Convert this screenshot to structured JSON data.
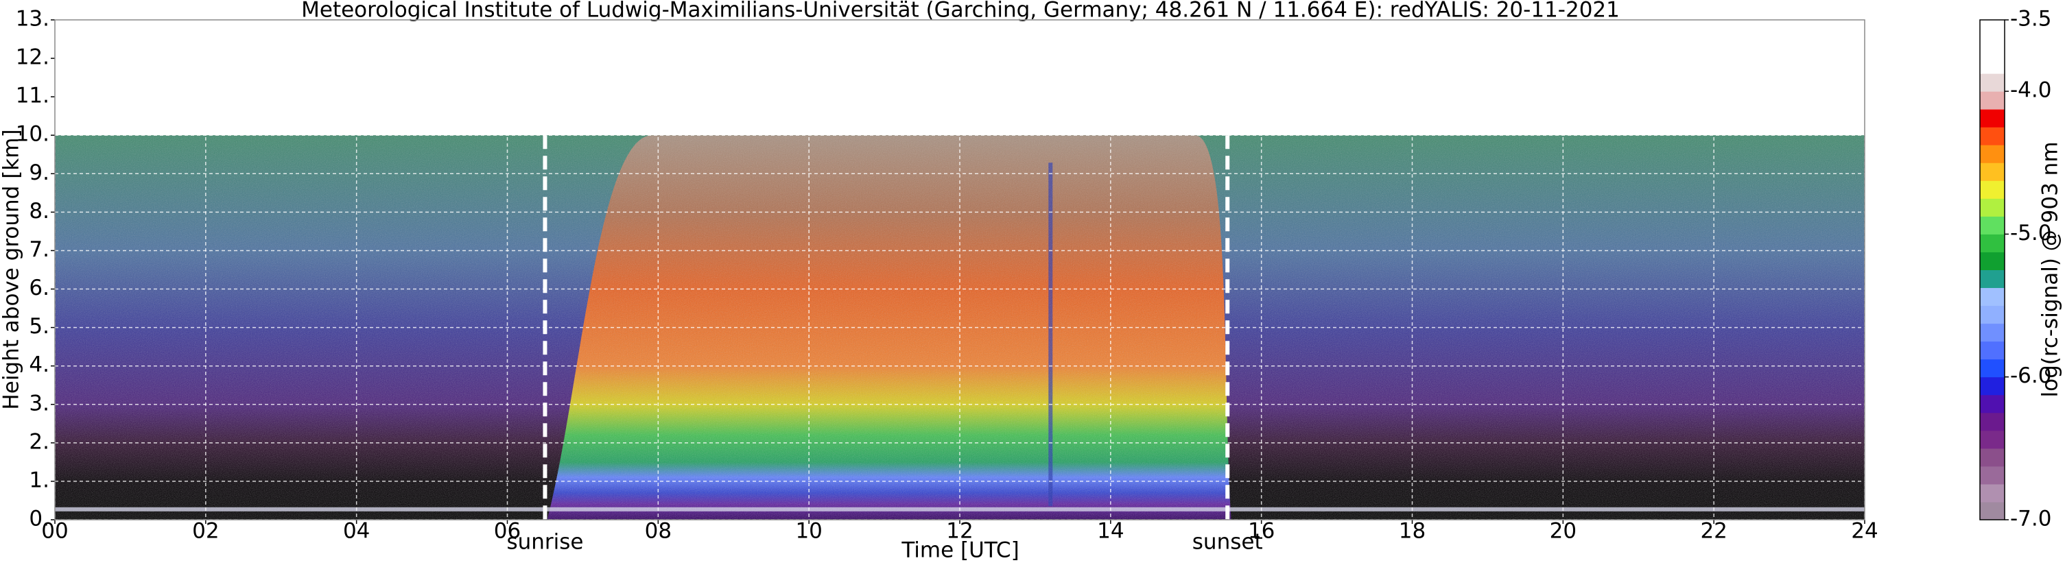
{
  "chart_data": {
    "type": "heatmap",
    "title": "Meteorological Institute of Ludwig-Maximilians-Universität (Garching, Germany; 48.261 N / 11.664 E):    redYALIS: 20-11-2021",
    "x_label": "Time [UTC]",
    "y_label": "Height above ground [km]",
    "xlim": [
      0,
      24
    ],
    "xticks": [
      {
        "value": 0,
        "label": "00"
      },
      {
        "value": 2,
        "label": "02"
      },
      {
        "value": 4,
        "label": "04"
      },
      {
        "value": 6,
        "label": "06"
      },
      {
        "value": 8,
        "label": "08"
      },
      10,
      12,
      14,
      16,
      18,
      20,
      22,
      24
    ],
    "ylim": [
      0,
      13
    ],
    "yticks": [
      {
        "value": 0,
        "label": "0."
      },
      {
        "value": 1,
        "label": "1."
      },
      {
        "value": 2,
        "label": "2."
      },
      {
        "value": 3,
        "label": "3."
      },
      {
        "value": 4,
        "label": "4."
      },
      {
        "value": 5,
        "label": "5."
      },
      {
        "value": 6,
        "label": "6."
      },
      {
        "value": 7,
        "label": "7."
      },
      {
        "value": 8,
        "label": "8."
      },
      {
        "value": 9,
        "label": "9."
      },
      {
        "value": 10,
        "label": "10."
      },
      {
        "value": 11,
        "label": "11."
      },
      {
        "value": 12,
        "label": "12."
      },
      {
        "value": 13,
        "label": "13."
      }
    ],
    "grid": true,
    "annotations": [
      {
        "x": 6.5,
        "label": "sunrise"
      },
      {
        "x": 15.55,
        "label": "sunset"
      }
    ],
    "colorbar": {
      "label": "log(rc-signal) @ 903 nm",
      "lim": [
        -7,
        -3.5
      ],
      "ticks": [
        {
          "value": -7,
          "label": "-7.0"
        },
        {
          "value": -6,
          "label": "-6.0"
        },
        {
          "value": -5,
          "label": "-5.0"
        },
        {
          "value": -4,
          "label": "-4.0"
        },
        -3.5
      ],
      "colors": [
        "#a08aa0",
        "#b090b0",
        "#9a6a9a",
        "#8b4f8b",
        "#7a2a8a",
        "#6b1a8e",
        "#5010b0",
        "#2020e0",
        "#2050ff",
        "#5070ff",
        "#7090ff",
        "#90b0ff",
        "#a0c0ff",
        "#20a090",
        "#10a030",
        "#30c040",
        "#60e060",
        "#b0f040",
        "#f0f030",
        "#ffc020",
        "#ff9010",
        "#ff5010",
        "#f00000",
        "#e8b0b0",
        "#e8d8d8",
        "#ffffff",
        "#ffffff",
        "#ffffff"
      ]
    }
  }
}
